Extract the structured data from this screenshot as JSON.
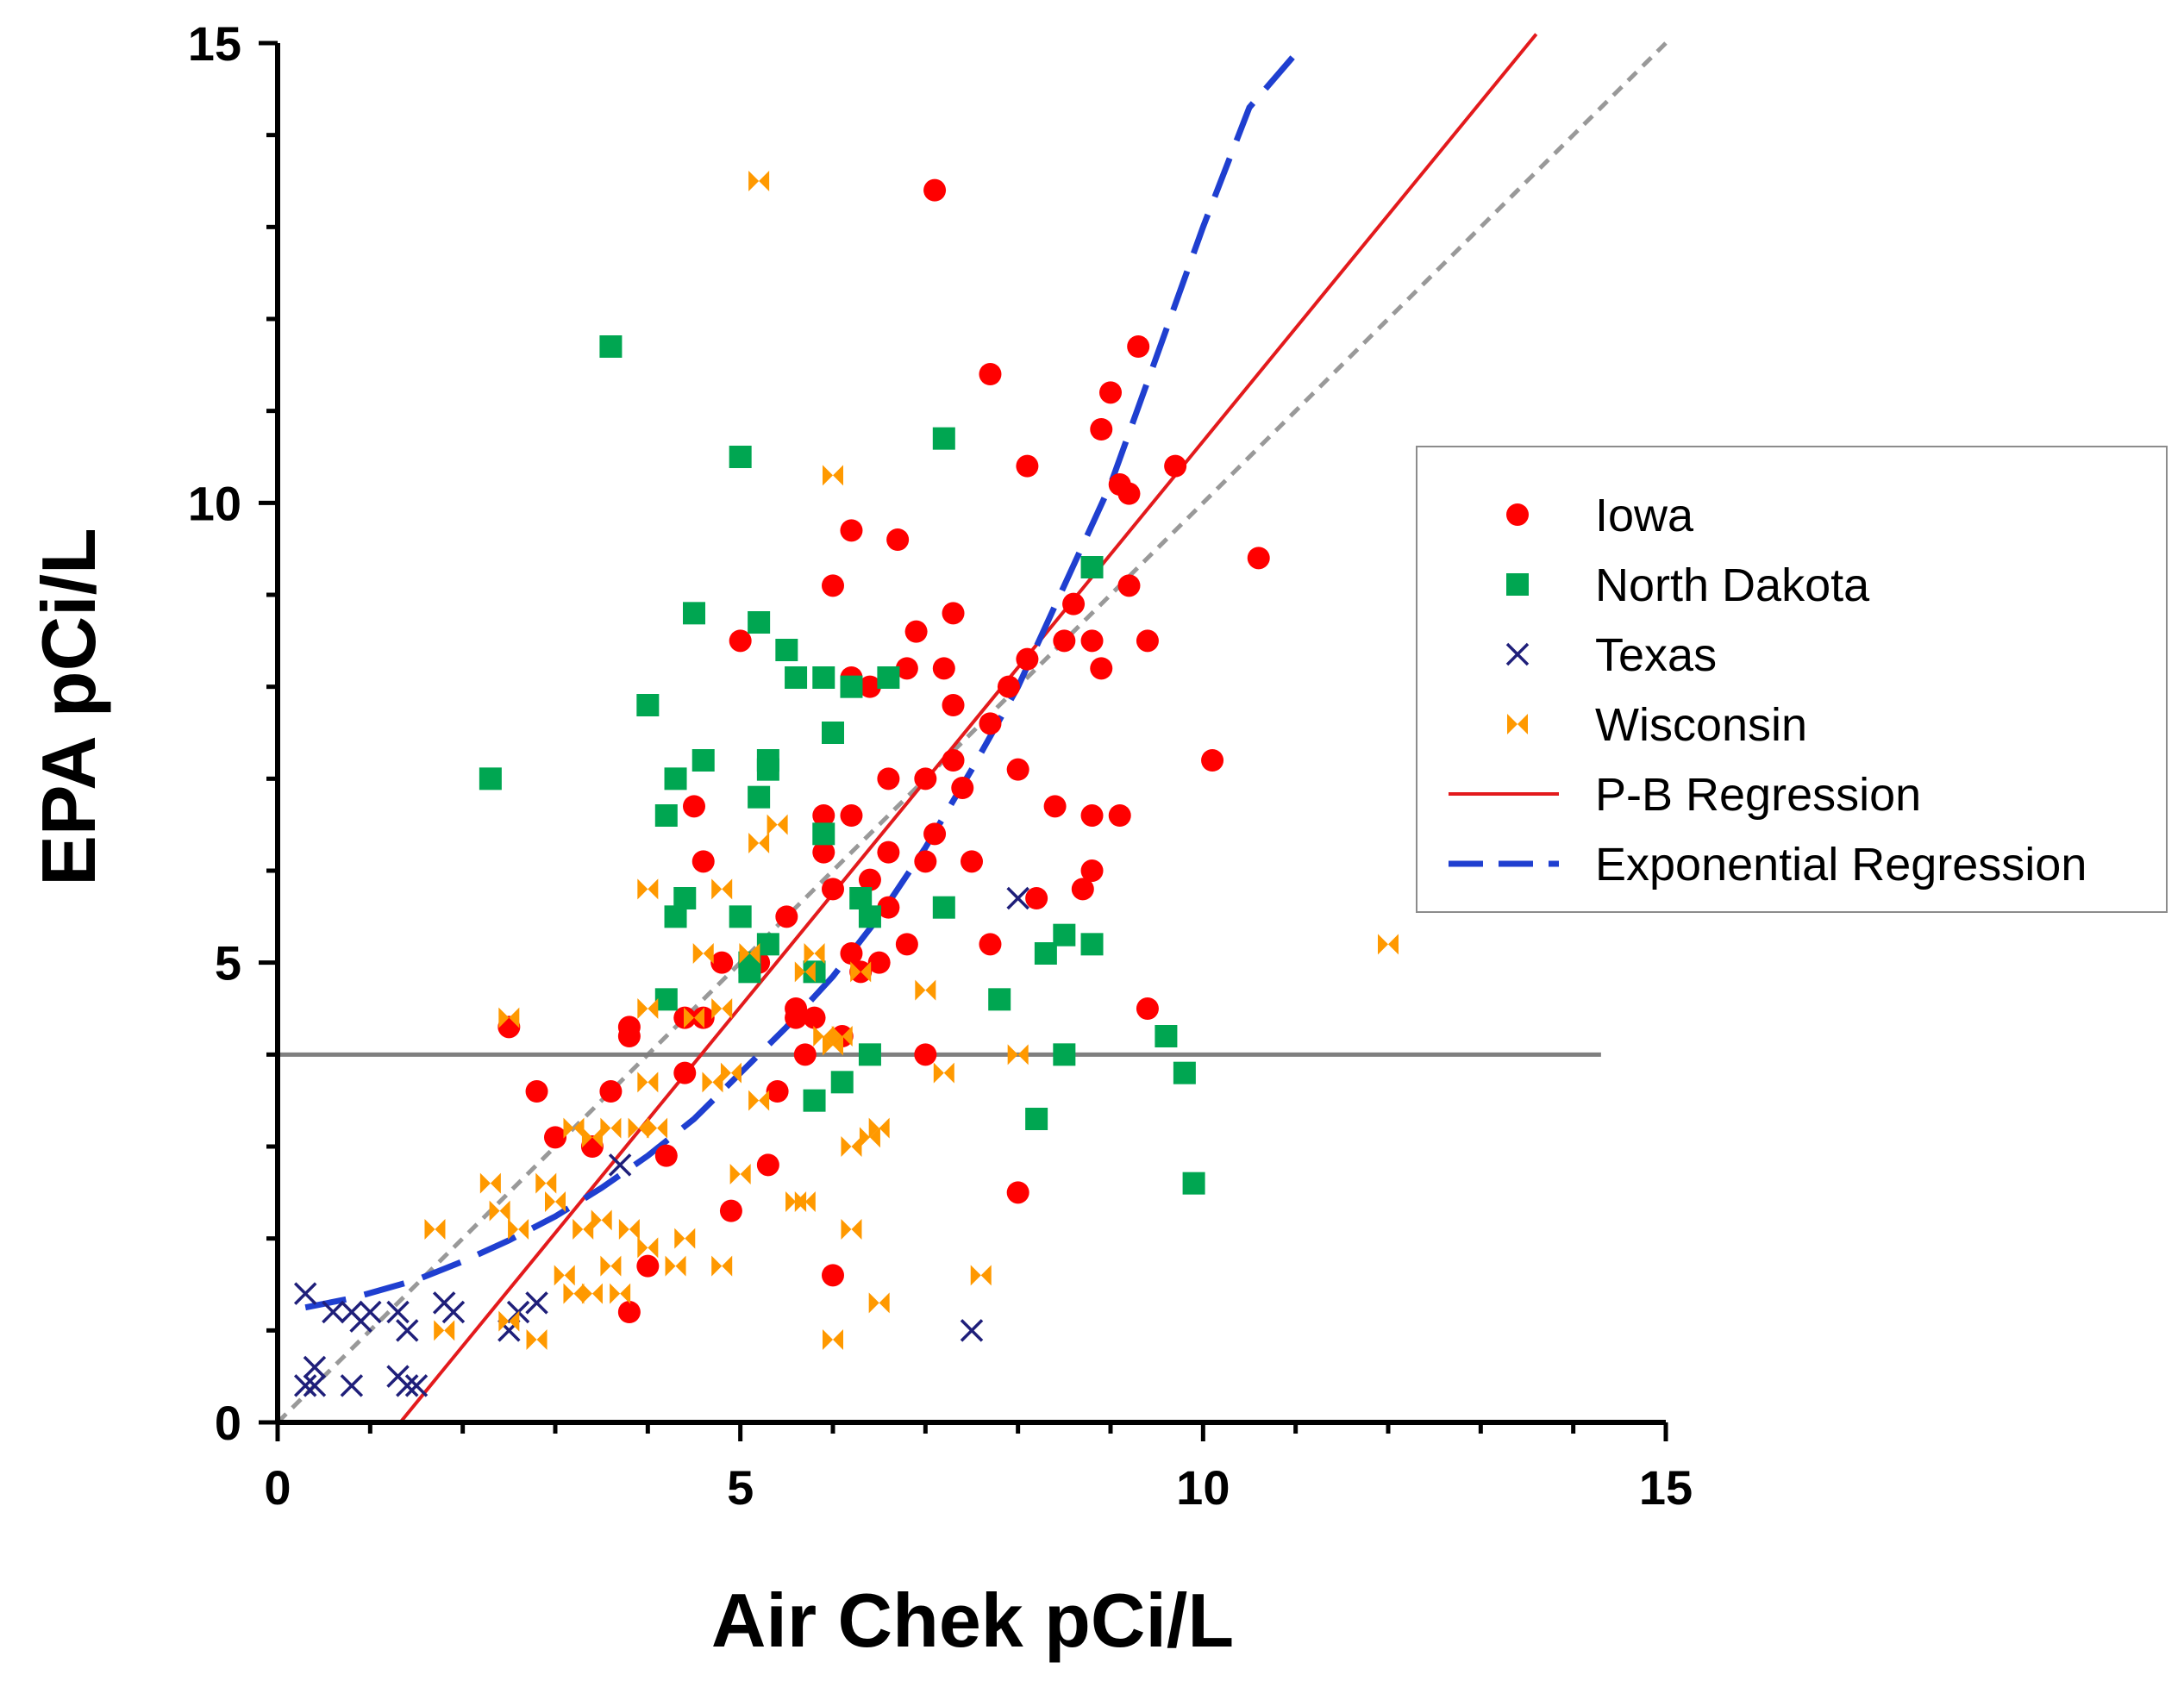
{
  "chart_data": {
    "type": "scatter",
    "xlabel": "Air Chek pCi/L",
    "ylabel": "EPA pCi/L",
    "xlim": [
      0,
      15
    ],
    "ylim": [
      0,
      15
    ],
    "x_ticks": [
      "0",
      "5",
      "10",
      "15"
    ],
    "y_ticks": [
      "0",
      "5",
      "10",
      "15"
    ],
    "grid": false,
    "legend_position": "right",
    "colors": {
      "iowa": "#ff0000",
      "north_dakota": "#00a651",
      "texas": "#1f1f7a",
      "wisconsin": "#ff9900",
      "pb_line": "#e31a1c",
      "exp_line": "#1f3fd0",
      "identity_line": "#999999",
      "threshold_line": "#7f7f7f"
    },
    "reference_lines": {
      "identity": {
        "slope": 1,
        "intercept": 0,
        "x_range": [
          0,
          15
        ]
      },
      "threshold": {
        "y": 4,
        "x_range": [
          0,
          14.3
        ]
      }
    },
    "series": [
      {
        "name": "Iowa",
        "marker": "circle",
        "points": [
          [
            2.5,
            4.3
          ],
          [
            2.8,
            3.6
          ],
          [
            3.0,
            3.1
          ],
          [
            3.4,
            3.0
          ],
          [
            3.6,
            3.6
          ],
          [
            3.8,
            4.2
          ],
          [
            3.8,
            4.3
          ],
          [
            3.8,
            1.2
          ],
          [
            4.0,
            1.7
          ],
          [
            4.2,
            2.9
          ],
          [
            4.4,
            3.8
          ],
          [
            4.4,
            4.4
          ],
          [
            4.5,
            6.7
          ],
          [
            4.6,
            6.1
          ],
          [
            4.6,
            4.4
          ],
          [
            4.8,
            5.0
          ],
          [
            4.9,
            2.3
          ],
          [
            5.0,
            8.5
          ],
          [
            5.2,
            5.0
          ],
          [
            5.3,
            2.8
          ],
          [
            5.4,
            3.6
          ],
          [
            5.5,
            5.5
          ],
          [
            5.6,
            4.5
          ],
          [
            5.6,
            4.4
          ],
          [
            5.7,
            4.0
          ],
          [
            5.8,
            4.4
          ],
          [
            5.9,
            6.6
          ],
          [
            5.9,
            6.2
          ],
          [
            6.0,
            9.1
          ],
          [
            6.0,
            5.8
          ],
          [
            6.0,
            1.6
          ],
          [
            6.1,
            4.2
          ],
          [
            6.2,
            9.7
          ],
          [
            6.2,
            8.1
          ],
          [
            6.2,
            6.6
          ],
          [
            6.2,
            5.1
          ],
          [
            6.3,
            4.9
          ],
          [
            6.4,
            8.0
          ],
          [
            6.4,
            5.9
          ],
          [
            6.5,
            5.0
          ],
          [
            6.6,
            7.0
          ],
          [
            6.6,
            6.2
          ],
          [
            6.6,
            5.6
          ],
          [
            6.7,
            9.6
          ],
          [
            6.8,
            8.2
          ],
          [
            6.8,
            5.2
          ],
          [
            6.9,
            8.6
          ],
          [
            7.0,
            7.0
          ],
          [
            7.0,
            6.1
          ],
          [
            7.0,
            4.0
          ],
          [
            7.1,
            13.4
          ],
          [
            7.1,
            6.4
          ],
          [
            7.2,
            8.2
          ],
          [
            7.3,
            8.8
          ],
          [
            7.3,
            7.8
          ],
          [
            7.3,
            7.2
          ],
          [
            7.4,
            6.9
          ],
          [
            7.5,
            6.1
          ],
          [
            7.7,
            11.4
          ],
          [
            7.7,
            7.6
          ],
          [
            7.7,
            5.2
          ],
          [
            7.9,
            8.0
          ],
          [
            8.0,
            7.1
          ],
          [
            8.0,
            2.5
          ],
          [
            8.1,
            10.4
          ],
          [
            8.1,
            8.3
          ],
          [
            8.2,
            5.7
          ],
          [
            8.4,
            6.7
          ],
          [
            8.5,
            8.5
          ],
          [
            8.6,
            8.9
          ],
          [
            8.7,
            5.8
          ],
          [
            8.8,
            8.5
          ],
          [
            8.8,
            6.6
          ],
          [
            8.8,
            6.0
          ],
          [
            8.9,
            10.8
          ],
          [
            8.9,
            8.2
          ],
          [
            9.0,
            11.2
          ],
          [
            9.1,
            10.2
          ],
          [
            9.1,
            6.6
          ],
          [
            9.2,
            10.1
          ],
          [
            9.2,
            9.1
          ],
          [
            9.3,
            11.7
          ],
          [
            9.4,
            8.5
          ],
          [
            9.4,
            4.5
          ],
          [
            9.7,
            10.4
          ],
          [
            10.1,
            7.2
          ],
          [
            10.6,
            9.4
          ]
        ]
      },
      {
        "name": "North Dakota",
        "marker": "square",
        "points": [
          [
            2.3,
            7.0
          ],
          [
            3.6,
            11.7
          ],
          [
            4.0,
            7.8
          ],
          [
            4.2,
            4.6
          ],
          [
            4.2,
            6.6
          ],
          [
            4.3,
            7.0
          ],
          [
            4.3,
            5.5
          ],
          [
            4.4,
            5.7
          ],
          [
            4.5,
            8.8
          ],
          [
            4.6,
            7.2
          ],
          [
            5.0,
            10.5
          ],
          [
            5.0,
            5.5
          ],
          [
            5.1,
            5.0
          ],
          [
            5.1,
            4.9
          ],
          [
            5.2,
            6.8
          ],
          [
            5.2,
            8.7
          ],
          [
            5.3,
            7.2
          ],
          [
            5.3,
            7.1
          ],
          [
            5.3,
            5.2
          ],
          [
            5.5,
            8.4
          ],
          [
            5.6,
            8.1
          ],
          [
            5.8,
            4.9
          ],
          [
            5.8,
            3.5
          ],
          [
            5.9,
            8.1
          ],
          [
            5.9,
            6.4
          ],
          [
            6.0,
            7.5
          ],
          [
            6.1,
            3.7
          ],
          [
            6.2,
            8.0
          ],
          [
            6.3,
            5.7
          ],
          [
            6.4,
            5.5
          ],
          [
            6.4,
            4.0
          ],
          [
            6.6,
            8.1
          ],
          [
            7.2,
            10.7
          ],
          [
            7.2,
            5.6
          ],
          [
            7.8,
            4.6
          ],
          [
            8.2,
            3.3
          ],
          [
            8.3,
            5.1
          ],
          [
            8.5,
            4.0
          ],
          [
            8.5,
            5.3
          ],
          [
            8.8,
            9.3
          ],
          [
            8.8,
            5.2
          ],
          [
            9.6,
            4.2
          ],
          [
            9.8,
            3.8
          ],
          [
            9.9,
            2.6
          ]
        ]
      },
      {
        "name": "Texas",
        "marker": "x",
        "points": [
          [
            0.3,
            1.4
          ],
          [
            0.3,
            0.4
          ],
          [
            0.4,
            0.6
          ],
          [
            0.4,
            0.4
          ],
          [
            0.6,
            1.2
          ],
          [
            0.8,
            1.2
          ],
          [
            0.8,
            0.4
          ],
          [
            0.9,
            1.1
          ],
          [
            1.0,
            1.2
          ],
          [
            1.3,
            1.2
          ],
          [
            1.3,
            0.5
          ],
          [
            1.4,
            0.4
          ],
          [
            1.4,
            1.0
          ],
          [
            1.5,
            0.4
          ],
          [
            1.8,
            1.3
          ],
          [
            1.9,
            1.2
          ],
          [
            2.5,
            1.0
          ],
          [
            2.6,
            1.2
          ],
          [
            2.8,
            1.3
          ],
          [
            3.7,
            2.8
          ],
          [
            7.5,
            1.0
          ],
          [
            8.0,
            5.7
          ]
        ]
      },
      {
        "name": "Wisconsin",
        "marker": "bowtie",
        "points": [
          [
            1.7,
            2.1
          ],
          [
            1.8,
            1.0
          ],
          [
            2.3,
            2.6
          ],
          [
            2.4,
            2.3
          ],
          [
            2.5,
            4.4
          ],
          [
            2.5,
            1.1
          ],
          [
            2.6,
            2.1
          ],
          [
            2.8,
            0.9
          ],
          [
            2.9,
            2.6
          ],
          [
            3.0,
            2.4
          ],
          [
            3.1,
            1.6
          ],
          [
            3.2,
            3.2
          ],
          [
            3.2,
            1.4
          ],
          [
            3.3,
            2.1
          ],
          [
            3.4,
            3.1
          ],
          [
            3.4,
            1.4
          ],
          [
            3.5,
            2.2
          ],
          [
            3.6,
            3.2
          ],
          [
            3.6,
            1.7
          ],
          [
            3.7,
            1.4
          ],
          [
            3.8,
            2.1
          ],
          [
            3.9,
            3.2
          ],
          [
            4.0,
            5.8
          ],
          [
            4.0,
            4.5
          ],
          [
            4.0,
            3.7
          ],
          [
            4.0,
            1.9
          ],
          [
            4.1,
            3.2
          ],
          [
            4.3,
            1.7
          ],
          [
            4.4,
            2.0
          ],
          [
            4.5,
            4.4
          ],
          [
            4.6,
            5.1
          ],
          [
            4.7,
            3.7
          ],
          [
            4.8,
            5.8
          ],
          [
            4.8,
            4.5
          ],
          [
            4.8,
            1.7
          ],
          [
            4.9,
            3.8
          ],
          [
            5.0,
            2.7
          ],
          [
            5.1,
            5.1
          ],
          [
            5.2,
            6.3
          ],
          [
            5.2,
            3.5
          ],
          [
            5.2,
            13.5
          ],
          [
            5.4,
            6.5
          ],
          [
            5.6,
            2.4
          ],
          [
            5.7,
            2.4
          ],
          [
            5.7,
            4.9
          ],
          [
            5.8,
            5.1
          ],
          [
            5.9,
            4.2
          ],
          [
            6.0,
            10.3
          ],
          [
            6.0,
            4.1
          ],
          [
            6.0,
            0.9
          ],
          [
            6.1,
            4.2
          ],
          [
            6.2,
            3.0
          ],
          [
            6.2,
            2.1
          ],
          [
            6.3,
            4.9
          ],
          [
            6.4,
            3.1
          ],
          [
            6.5,
            3.2
          ],
          [
            6.5,
            1.3
          ],
          [
            7.0,
            4.7
          ],
          [
            7.2,
            3.8
          ],
          [
            7.6,
            1.6
          ],
          [
            8.0,
            4.0
          ],
          [
            12.0,
            5.2
          ]
        ]
      },
      {
        "name": "P-B Regression",
        "marker": "line-solid",
        "line": {
          "slope": 1.23,
          "intercept": -1.63,
          "x_range": [
            1.33,
            13.6
          ]
        }
      },
      {
        "name": "Exponential Regression",
        "marker": "line-dashed",
        "points": [
          [
            0.3,
            1.25
          ],
          [
            0.8,
            1.35
          ],
          [
            1.5,
            1.55
          ],
          [
            2.0,
            1.75
          ],
          [
            2.5,
            1.98
          ],
          [
            3.0,
            2.24
          ],
          [
            3.5,
            2.55
          ],
          [
            4.0,
            2.9
          ],
          [
            4.5,
            3.3
          ],
          [
            5.0,
            3.8
          ],
          [
            5.5,
            4.3
          ],
          [
            6.0,
            4.85
          ],
          [
            6.5,
            5.5
          ],
          [
            7.0,
            6.25
          ],
          [
            7.5,
            7.1
          ],
          [
            8.0,
            8.0
          ],
          [
            8.5,
            9.1
          ],
          [
            9.0,
            10.2
          ],
          [
            9.5,
            11.6
          ],
          [
            10.0,
            13.0
          ],
          [
            10.5,
            14.3
          ],
          [
            11.1,
            15.0
          ]
        ]
      }
    ]
  }
}
